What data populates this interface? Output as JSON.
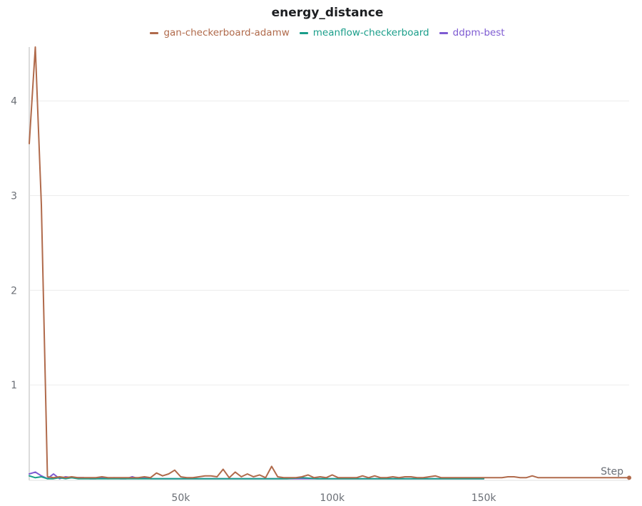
{
  "chart_data": {
    "type": "line",
    "title": "energy_distance",
    "xlabel": "Step",
    "ylabel": "",
    "xlim": [
      0,
      198000
    ],
    "ylim": [
      0,
      4.57
    ],
    "x_ticks": [
      50000,
      100000,
      150000
    ],
    "x_tick_labels": [
      "50k",
      "100k",
      "150k"
    ],
    "y_ticks": [
      1,
      2,
      3,
      4
    ],
    "y_tick_labels": [
      "1",
      "2",
      "3",
      "4"
    ],
    "grid": true,
    "legend_position": "top",
    "series": [
      {
        "name": "gan-checkerboard-adamw",
        "color": "#b06a4b",
        "points": [
          [
            0,
            3.55
          ],
          [
            2000,
            4.57
          ],
          [
            4000,
            2.9
          ],
          [
            6000,
            0.03
          ],
          [
            8000,
            0.02
          ],
          [
            10000,
            0.03
          ],
          [
            12000,
            0.02
          ],
          [
            14000,
            0.03
          ],
          [
            16000,
            0.02
          ],
          [
            18000,
            0.02
          ],
          [
            20000,
            0.02
          ],
          [
            22000,
            0.02
          ],
          [
            24000,
            0.03
          ],
          [
            26000,
            0.02
          ],
          [
            28000,
            0.02
          ],
          [
            30000,
            0.02
          ],
          [
            32000,
            0.02
          ],
          [
            34000,
            0.02
          ],
          [
            36000,
            0.02
          ],
          [
            38000,
            0.03
          ],
          [
            40000,
            0.02
          ],
          [
            42000,
            0.07
          ],
          [
            44000,
            0.04
          ],
          [
            46000,
            0.06
          ],
          [
            48000,
            0.1
          ],
          [
            50000,
            0.03
          ],
          [
            52000,
            0.02
          ],
          [
            54000,
            0.02
          ],
          [
            56000,
            0.03
          ],
          [
            58000,
            0.04
          ],
          [
            60000,
            0.04
          ],
          [
            62000,
            0.03
          ],
          [
            64000,
            0.11
          ],
          [
            66000,
            0.02
          ],
          [
            68000,
            0.08
          ],
          [
            70000,
            0.03
          ],
          [
            72000,
            0.06
          ],
          [
            74000,
            0.03
          ],
          [
            76000,
            0.05
          ],
          [
            78000,
            0.02
          ],
          [
            80000,
            0.14
          ],
          [
            82000,
            0.03
          ],
          [
            84000,
            0.02
          ],
          [
            86000,
            0.02
          ],
          [
            88000,
            0.02
          ],
          [
            90000,
            0.03
          ],
          [
            92000,
            0.05
          ],
          [
            94000,
            0.02
          ],
          [
            96000,
            0.03
          ],
          [
            98000,
            0.02
          ],
          [
            100000,
            0.05
          ],
          [
            102000,
            0.02
          ],
          [
            104000,
            0.02
          ],
          [
            106000,
            0.02
          ],
          [
            108000,
            0.02
          ],
          [
            110000,
            0.04
          ],
          [
            112000,
            0.02
          ],
          [
            114000,
            0.04
          ],
          [
            116000,
            0.02
          ],
          [
            118000,
            0.02
          ],
          [
            120000,
            0.03
          ],
          [
            122000,
            0.02
          ],
          [
            124000,
            0.03
          ],
          [
            126000,
            0.03
          ],
          [
            128000,
            0.02
          ],
          [
            130000,
            0.02
          ],
          [
            132000,
            0.03
          ],
          [
            134000,
            0.04
          ],
          [
            136000,
            0.02
          ],
          [
            138000,
            0.02
          ],
          [
            140000,
            0.02
          ],
          [
            142000,
            0.02
          ],
          [
            144000,
            0.02
          ],
          [
            146000,
            0.02
          ],
          [
            148000,
            0.02
          ],
          [
            150000,
            0.02
          ],
          [
            152000,
            0.02
          ],
          [
            154000,
            0.02
          ],
          [
            156000,
            0.02
          ],
          [
            158000,
            0.03
          ],
          [
            160000,
            0.03
          ],
          [
            162000,
            0.02
          ],
          [
            164000,
            0.02
          ],
          [
            166000,
            0.04
          ],
          [
            168000,
            0.02
          ],
          [
            170000,
            0.02
          ],
          [
            172000,
            0.02
          ],
          [
            174000,
            0.02
          ],
          [
            176000,
            0.02
          ],
          [
            178000,
            0.02
          ],
          [
            180000,
            0.02
          ],
          [
            182000,
            0.02
          ],
          [
            184000,
            0.02
          ],
          [
            186000,
            0.02
          ],
          [
            188000,
            0.02
          ],
          [
            190000,
            0.02
          ],
          [
            192000,
            0.02
          ],
          [
            194000,
            0.02
          ],
          [
            196000,
            0.02
          ],
          [
            198000,
            0.02
          ]
        ]
      },
      {
        "name": "meanflow-checkerboard",
        "color": "#1a9e8a",
        "points": [
          [
            0,
            0.04
          ],
          [
            2000,
            0.02
          ],
          [
            4000,
            0.03
          ],
          [
            6000,
            0.01
          ],
          [
            8000,
            0.01
          ],
          [
            10000,
            0.02
          ],
          [
            12000,
            0.01
          ],
          [
            14000,
            0.02
          ],
          [
            16000,
            0.01
          ],
          [
            18000,
            0.01
          ],
          [
            20000,
            0.01
          ],
          [
            25000,
            0.01
          ],
          [
            30000,
            0.01
          ],
          [
            35000,
            0.01
          ],
          [
            40000,
            0.01
          ],
          [
            45000,
            0.01
          ],
          [
            50000,
            0.01
          ],
          [
            55000,
            0.01
          ],
          [
            60000,
            0.01
          ],
          [
            65000,
            0.01
          ],
          [
            70000,
            0.01
          ],
          [
            75000,
            0.01
          ],
          [
            80000,
            0.01
          ],
          [
            85000,
            0.01
          ],
          [
            90000,
            0.02
          ],
          [
            95000,
            0.01
          ],
          [
            100000,
            0.01
          ],
          [
            105000,
            0.01
          ],
          [
            110000,
            0.01
          ],
          [
            115000,
            0.01
          ],
          [
            120000,
            0.01
          ],
          [
            125000,
            0.01
          ],
          [
            130000,
            0.01
          ],
          [
            135000,
            0.01
          ],
          [
            140000,
            0.01
          ],
          [
            145000,
            0.01
          ],
          [
            150000,
            0.01
          ]
        ]
      },
      {
        "name": "ddpm-best",
        "color": "#7e5bd2",
        "points": [
          [
            0,
            0.06
          ],
          [
            2000,
            0.08
          ],
          [
            4000,
            0.04
          ],
          [
            6000,
            0.01
          ],
          [
            8000,
            0.06
          ],
          [
            10000,
            0.01
          ],
          [
            12000,
            0.03
          ],
          [
            14000,
            0.02
          ],
          [
            16000,
            0.02
          ],
          [
            18000,
            0.02
          ],
          [
            20000,
            0.01
          ],
          [
            22000,
            0.01
          ],
          [
            24000,
            0.02
          ],
          [
            26000,
            0.01
          ],
          [
            28000,
            0.02
          ],
          [
            30000,
            0.01
          ],
          [
            32000,
            0.01
          ],
          [
            34000,
            0.03
          ],
          [
            36000,
            0.01
          ],
          [
            38000,
            0.02
          ],
          [
            40000,
            0.01
          ],
          [
            45000,
            0.01
          ],
          [
            50000,
            0.01
          ],
          [
            55000,
            0.01
          ],
          [
            60000,
            0.01
          ],
          [
            65000,
            0.01
          ],
          [
            70000,
            0.01
          ],
          [
            75000,
            0.01
          ],
          [
            80000,
            0.01
          ],
          [
            85000,
            0.01
          ],
          [
            90000,
            0.01
          ],
          [
            95000,
            0.01
          ],
          [
            100000,
            0.01
          ],
          [
            105000,
            0.01
          ],
          [
            110000,
            0.01
          ],
          [
            115000,
            0.01
          ],
          [
            120000,
            0.01
          ],
          [
            125000,
            0.01
          ],
          [
            130000,
            0.01
          ],
          [
            135000,
            0.01
          ],
          [
            140000,
            0.01
          ],
          [
            145000,
            0.01
          ],
          [
            150000,
            0.01
          ]
        ]
      }
    ]
  }
}
